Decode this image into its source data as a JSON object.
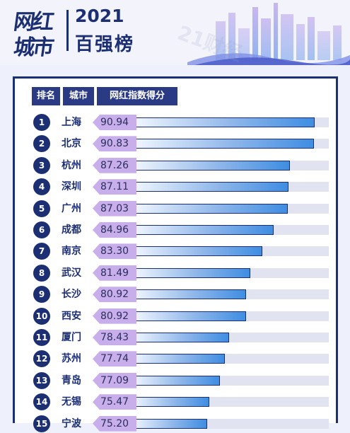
{
  "header": {
    "logo_line1": "网红",
    "logo_line2": "城市",
    "year": "2021",
    "subtitle": "百强榜"
  },
  "table": {
    "col_rank": "排名",
    "col_city": "城市",
    "col_score": "网红指数得分"
  },
  "watermark": "21财经",
  "colors": {
    "navy": "#1d2f73",
    "header_bg": "#2a3a85",
    "tag": "#c8aeea",
    "bar_end": "#3f8de2"
  },
  "chart_data": {
    "type": "bar",
    "orientation": "horizontal",
    "title": "网红城市 2021 百强榜",
    "categories": [
      "上海",
      "北京",
      "杭州",
      "深圳",
      "广州",
      "成都",
      "南京",
      "武汉",
      "长沙",
      "西安",
      "厦门",
      "苏州",
      "青岛",
      "无锡",
      "宁波"
    ],
    "ranks": [
      "1",
      "2",
      "3",
      "4",
      "5",
      "6",
      "7",
      "8",
      "9",
      "10",
      "11",
      "12",
      "13",
      "14",
      "15"
    ],
    "series": [
      {
        "name": "网红指数得分",
        "values": [
          90.94,
          90.83,
          87.26,
          87.11,
          87.03,
          84.96,
          83.3,
          81.49,
          80.92,
          80.92,
          78.43,
          77.74,
          77.09,
          75.47,
          75.2
        ]
      }
    ],
    "labels": [
      "90.94",
      "90.83",
      "87.26",
      "87.11",
      "87.03",
      "84.96",
      "83.30",
      "81.49",
      "80.92",
      "80.92",
      "78.43",
      "77.74",
      "77.09",
      "75.47",
      "75.20"
    ],
    "xlim": [
      64,
      93
    ]
  }
}
